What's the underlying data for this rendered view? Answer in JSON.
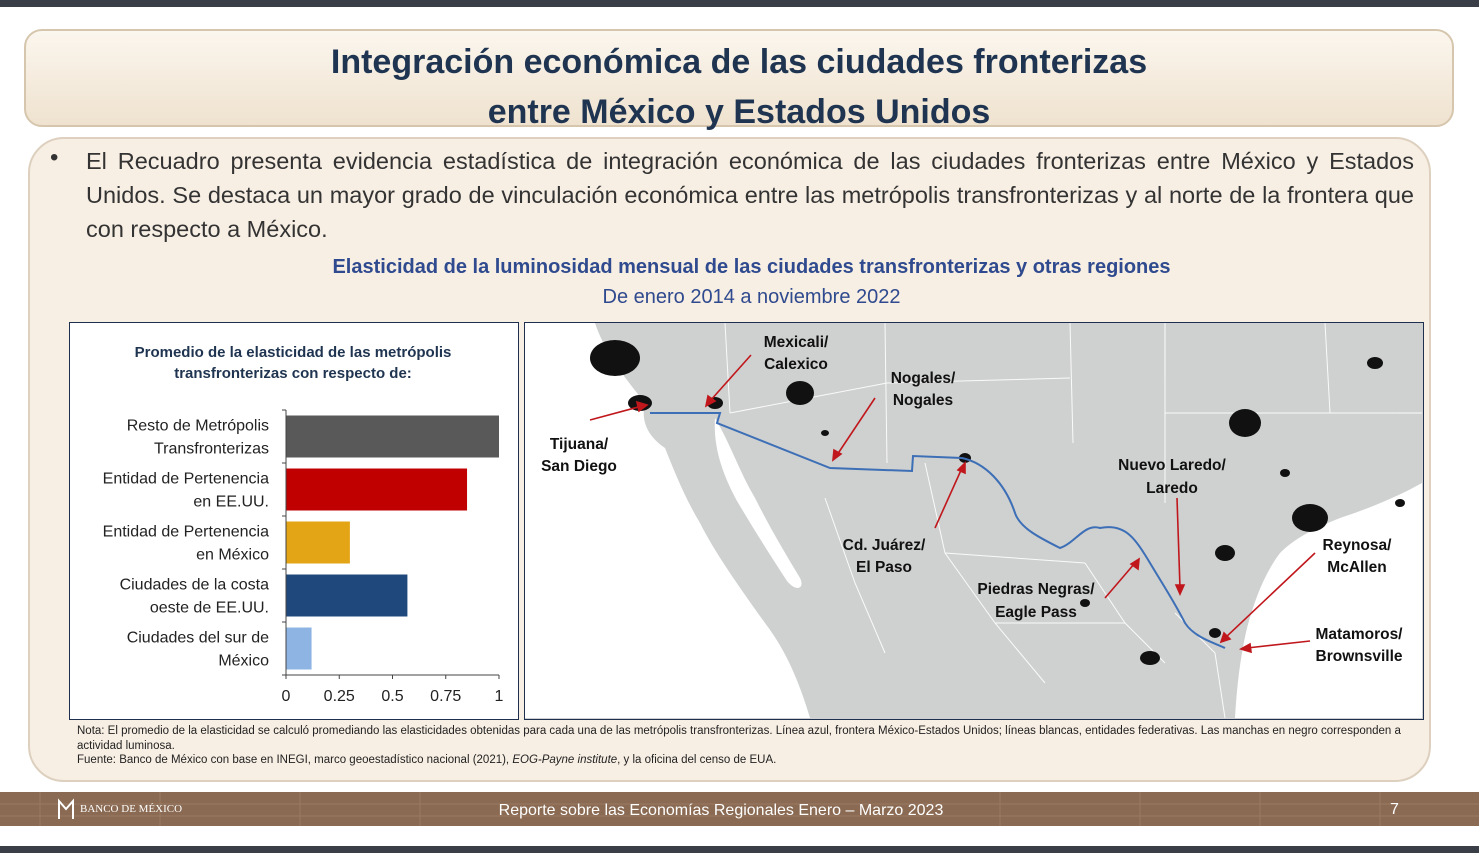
{
  "header": {
    "title_line1": "Integración económica de las ciudades fronterizas",
    "title_line2": "entre México y Estados Unidos"
  },
  "bullet": {
    "symbol": "•",
    "text": "El Recuadro presenta evidencia estadística de integración económica de las ciudades fronterizas entre México y Estados Unidos. Se destaca un mayor grado de vinculación económica entre las metrópolis transfronterizas y al norte de la frontera que con respecto a México."
  },
  "figure": {
    "title": "Elasticidad de la luminosidad mensual de las ciudades transfronterizas y otras regiones",
    "subtitle": "De enero 2014 a noviembre 2022"
  },
  "chart_data": {
    "type": "bar",
    "orientation": "horizontal",
    "title_line1": "Promedio de la elasticidad de las metrópolis",
    "title_line2": "transfronterizas con respecto de:",
    "categories": [
      [
        "Resto de Metrópolis",
        "Transfronterizas"
      ],
      [
        "Entidad de Pertenencia",
        "en EE.UU."
      ],
      [
        "Entidad de Pertenencia",
        "en México"
      ],
      [
        "Ciudades de la costa",
        "oeste de EE.UU."
      ],
      [
        "Ciudades del sur de",
        "México"
      ]
    ],
    "values": [
      1.0,
      0.85,
      0.3,
      0.57,
      0.12
    ],
    "colors": [
      "#595959",
      "#c00000",
      "#e3a516",
      "#1f497d",
      "#8db4e2"
    ],
    "xlim": [
      0,
      1
    ],
    "xticks": [
      "0",
      "0.25",
      "0.5",
      "0.75",
      "1"
    ],
    "xtick_values": [
      0,
      0.25,
      0.5,
      0.75,
      1
    ]
  },
  "map": {
    "labels": [
      {
        "line1": "Mexicali/",
        "line2": "Calexico"
      },
      {
        "line1": "Nogales/",
        "line2": "Nogales"
      },
      {
        "line1": "Tijuana/",
        "line2": "San Diego"
      },
      {
        "line1": "Nuevo Laredo/",
        "line2": "Laredo"
      },
      {
        "line1": "Cd. Juárez/",
        "line2": "El Paso"
      },
      {
        "line1": "Reynosa/",
        "line2": "McAllen"
      },
      {
        "line1": "Piedras Negras/",
        "line2": "Eagle Pass"
      },
      {
        "line1": "Matamoros/",
        "line2": "Brownsville"
      }
    ],
    "border_color": "#3d6fb6",
    "arrow_color": "#c0171c"
  },
  "note": {
    "line1": "Nota: El promedio de la elasticidad se calculó promediando las elasticidades obtenidas para cada una de las metrópolis transfronterizas. Línea azul, frontera México-Estados Unidos; líneas blancas, entidades federativas. Las manchas en negro corresponden a actividad luminosa.",
    "source_prefix": "Fuente: Banco de México con base en INEGI, marco geoestadístico nacional (2021), ",
    "source_italic": "EOG-Payne institute",
    "source_suffix": ", y la oficina del censo de EUA."
  },
  "footer": {
    "logo_text": "BANCO DE MÉXICO",
    "report": "Reporte sobre las Economías Regionales Enero – Marzo 2023",
    "page": "7"
  }
}
